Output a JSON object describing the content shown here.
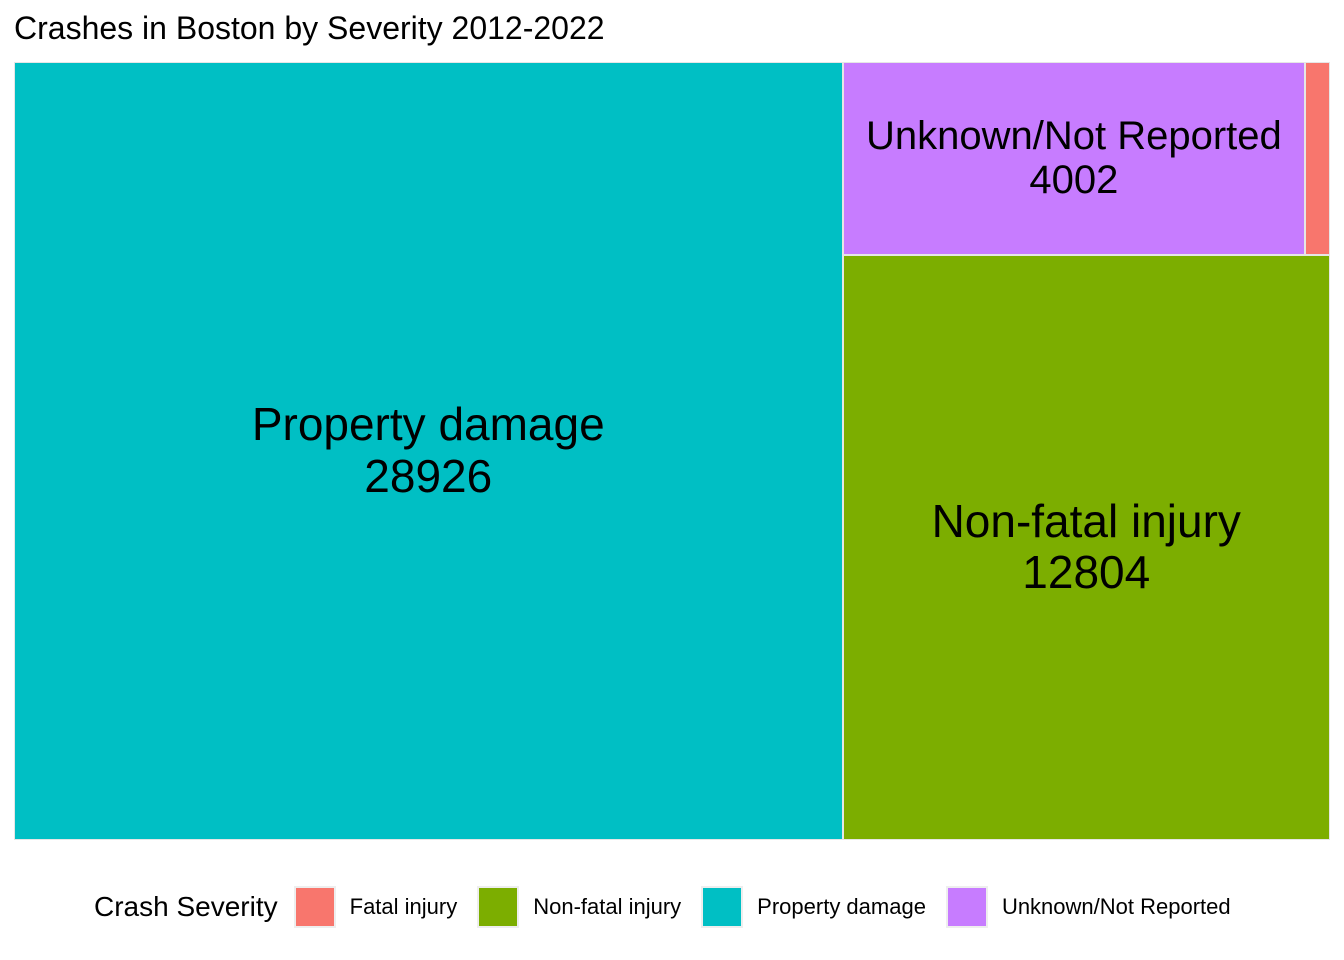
{
  "chart_data": {
    "type": "treemap",
    "title": "Crashes in Boston by Severity 2012-2022",
    "legend": {
      "title": "Crash Severity",
      "position": "bottom"
    },
    "categories": [
      "Fatal injury",
      "Non-fatal injury",
      "Property damage",
      "Unknown/Not Reported"
    ],
    "colors": [
      "#F8766D",
      "#7CAE00",
      "#00BFC4",
      "#C77CFF"
    ],
    "tiles": [
      {
        "label": "Property damage",
        "value": 28926,
        "display_value": "28926",
        "color": "#00BFC4"
      },
      {
        "label": "Non-fatal injury",
        "value": 12804,
        "display_value": "12804",
        "color": "#7CAE00"
      },
      {
        "label": "Unknown/Not Reported",
        "value": 4002,
        "display_value": "4002",
        "color": "#C77CFF"
      },
      {
        "label": "Fatal injury",
        "value": 214,
        "display_value": "",
        "color": "#F8766D"
      }
    ]
  }
}
